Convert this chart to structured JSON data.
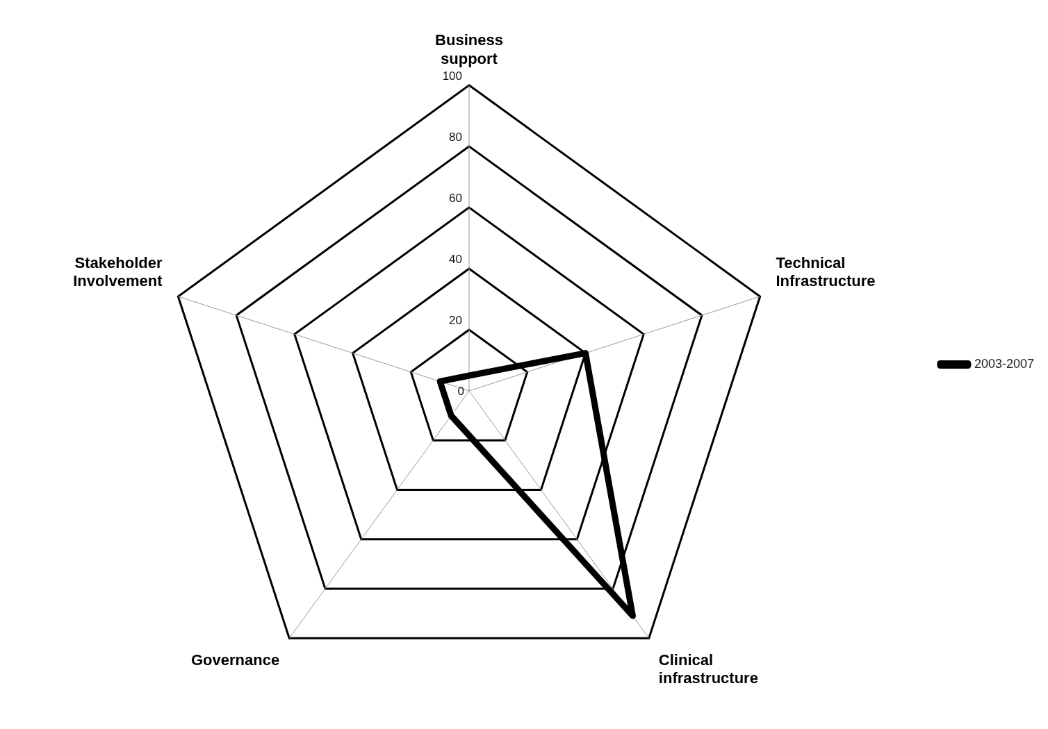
{
  "chart_data": {
    "type": "radar",
    "categories": [
      "Business support",
      "Technical Infrastructure",
      "Clinical infrastructure",
      "Governance",
      "Stakeholder Involvement"
    ],
    "series": [
      {
        "name": "2003-2007",
        "color": "#000000",
        "values": [
          5,
          40,
          91,
          10,
          10
        ]
      }
    ],
    "ylim": [
      0,
      100
    ],
    "yticks": [
      0,
      20,
      40,
      60,
      80,
      100
    ],
    "grid": true,
    "legend": "right",
    "marker": "none"
  }
}
